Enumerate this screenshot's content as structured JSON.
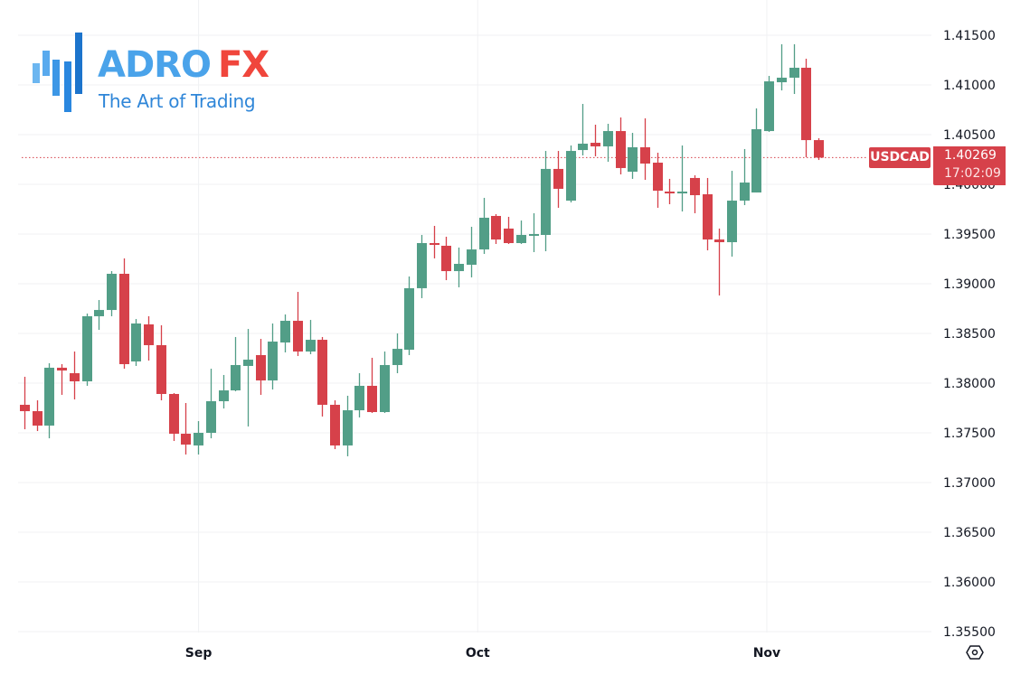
{
  "brand": {
    "name_part1": "ADRO",
    "name_part2": "FX",
    "tagline": "The Art of Trading",
    "colors": {
      "blue": "#4aa3ea",
      "red": "#f0463c",
      "tagline": "#2f86d8"
    }
  },
  "symbol_tag": {
    "symbol": "USDCAD"
  },
  "price_tag": {
    "price": "1.40269",
    "countdown": "17:02:09"
  },
  "settings_button": {
    "icon": "settings-hex-icon"
  },
  "colors": {
    "up": "#529e87",
    "down": "#d6414a",
    "grid": "#f0f1f3",
    "price_line": "#d6414a",
    "text": "#131722"
  },
  "chart_data": {
    "type": "candlestick",
    "title": "USDCAD",
    "xlabel": "",
    "ylabel": "",
    "x_tick_labels": [
      {
        "label": "Sep",
        "candle_index": 14
      },
      {
        "label": "Oct",
        "candle_index": 36.5
      },
      {
        "label": "Nov",
        "candle_index": 59.8
      }
    ],
    "y_ticks": [
      1.415,
      1.41,
      1.405,
      1.4,
      1.395,
      1.39,
      1.385,
      1.38,
      1.375,
      1.37,
      1.365,
      1.36,
      1.355
    ],
    "y_tick_labels": [
      "1.41500",
      "1.41000",
      "1.40500",
      "1.40000",
      "1.39500",
      "1.39000",
      "1.38500",
      "1.38000",
      "1.37500",
      "1.37000",
      "1.36500",
      "1.36000",
      "1.35500"
    ],
    "ylim": [
      1.355,
      1.415
    ],
    "grid": true,
    "last_price": 1.40269,
    "candles": [
      {
        "o": 1.37782,
        "h": 1.38064,
        "l": 1.37536,
        "c": 1.37718
      },
      {
        "o": 1.37718,
        "h": 1.37827,
        "l": 1.37518,
        "c": 1.37573
      },
      {
        "o": 1.37573,
        "h": 1.382,
        "l": 1.37445,
        "c": 1.38155
      },
      {
        "o": 1.38155,
        "h": 1.38191,
        "l": 1.37882,
        "c": 1.38127
      },
      {
        "o": 1.381,
        "h": 1.38318,
        "l": 1.37836,
        "c": 1.38018
      },
      {
        "o": 1.38018,
        "h": 1.387,
        "l": 1.37973,
        "c": 1.38673
      },
      {
        "o": 1.38673,
        "h": 1.38836,
        "l": 1.38536,
        "c": 1.38736
      },
      {
        "o": 1.38736,
        "h": 1.39127,
        "l": 1.38673,
        "c": 1.391
      },
      {
        "o": 1.391,
        "h": 1.39255,
        "l": 1.38145,
        "c": 1.38191
      },
      {
        "o": 1.38218,
        "h": 1.38645,
        "l": 1.38173,
        "c": 1.386
      },
      {
        "o": 1.38591,
        "h": 1.38673,
        "l": 1.38227,
        "c": 1.38382
      },
      {
        "o": 1.38382,
        "h": 1.38582,
        "l": 1.37827,
        "c": 1.37891
      },
      {
        "o": 1.37891,
        "h": 1.379,
        "l": 1.37418,
        "c": 1.37491
      },
      {
        "o": 1.37491,
        "h": 1.378,
        "l": 1.37282,
        "c": 1.37382
      },
      {
        "o": 1.37373,
        "h": 1.37618,
        "l": 1.37282,
        "c": 1.375
      },
      {
        "o": 1.375,
        "h": 1.38145,
        "l": 1.37445,
        "c": 1.37818
      },
      {
        "o": 1.37818,
        "h": 1.38082,
        "l": 1.37745,
        "c": 1.37927
      },
      {
        "o": 1.37927,
        "h": 1.38464,
        "l": 1.37918,
        "c": 1.38182
      },
      {
        "o": 1.38173,
        "h": 1.38545,
        "l": 1.37564,
        "c": 1.38236
      },
      {
        "o": 1.38282,
        "h": 1.38445,
        "l": 1.37882,
        "c": 1.38027
      },
      {
        "o": 1.38027,
        "h": 1.386,
        "l": 1.37936,
        "c": 1.38418
      },
      {
        "o": 1.38409,
        "h": 1.38691,
        "l": 1.38309,
        "c": 1.38627
      },
      {
        "o": 1.38627,
        "h": 1.38918,
        "l": 1.38273,
        "c": 1.38318
      },
      {
        "o": 1.38318,
        "h": 1.38636,
        "l": 1.38291,
        "c": 1.38436
      },
      {
        "o": 1.38436,
        "h": 1.38464,
        "l": 1.37664,
        "c": 1.37782
      },
      {
        "o": 1.37782,
        "h": 1.37827,
        "l": 1.37336,
        "c": 1.37373
      },
      {
        "o": 1.37373,
        "h": 1.37873,
        "l": 1.37264,
        "c": 1.37727
      },
      {
        "o": 1.37727,
        "h": 1.381,
        "l": 1.37655,
        "c": 1.37973
      },
      {
        "o": 1.37973,
        "h": 1.38255,
        "l": 1.377,
        "c": 1.37709
      },
      {
        "o": 1.37709,
        "h": 1.38318,
        "l": 1.377,
        "c": 1.38182
      },
      {
        "o": 1.38182,
        "h": 1.385,
        "l": 1.381,
        "c": 1.38345
      },
      {
        "o": 1.38336,
        "h": 1.39073,
        "l": 1.38282,
        "c": 1.38955
      },
      {
        "o": 1.38955,
        "h": 1.39491,
        "l": 1.38855,
        "c": 1.39409
      },
      {
        "o": 1.39409,
        "h": 1.39582,
        "l": 1.39255,
        "c": 1.39391
      },
      {
        "o": 1.39382,
        "h": 1.39473,
        "l": 1.39036,
        "c": 1.39127
      },
      {
        "o": 1.39127,
        "h": 1.39364,
        "l": 1.38964,
        "c": 1.392
      },
      {
        "o": 1.39191,
        "h": 1.39573,
        "l": 1.39064,
        "c": 1.39345
      },
      {
        "o": 1.39345,
        "h": 1.39864,
        "l": 1.393,
        "c": 1.39664
      },
      {
        "o": 1.39682,
        "h": 1.397,
        "l": 1.394,
        "c": 1.39445
      },
      {
        "o": 1.39555,
        "h": 1.39673,
        "l": 1.394,
        "c": 1.39409
      },
      {
        "o": 1.39409,
        "h": 1.39636,
        "l": 1.394,
        "c": 1.39491
      },
      {
        "o": 1.39491,
        "h": 1.39709,
        "l": 1.39318,
        "c": 1.395
      },
      {
        "o": 1.39491,
        "h": 1.40336,
        "l": 1.39327,
        "c": 1.40155
      },
      {
        "o": 1.40155,
        "h": 1.40336,
        "l": 1.39764,
        "c": 1.39955
      },
      {
        "o": 1.39836,
        "h": 1.40391,
        "l": 1.39818,
        "c": 1.40336
      },
      {
        "o": 1.40345,
        "h": 1.40809,
        "l": 1.40291,
        "c": 1.40409
      },
      {
        "o": 1.40418,
        "h": 1.406,
        "l": 1.40282,
        "c": 1.40382
      },
      {
        "o": 1.40382,
        "h": 1.40609,
        "l": 1.40227,
        "c": 1.40536
      },
      {
        "o": 1.40536,
        "h": 1.40673,
        "l": 1.401,
        "c": 1.40164
      },
      {
        "o": 1.40127,
        "h": 1.40518,
        "l": 1.40055,
        "c": 1.40373
      },
      {
        "o": 1.40373,
        "h": 1.40664,
        "l": 1.40045,
        "c": 1.40209
      },
      {
        "o": 1.40218,
        "h": 1.40318,
        "l": 1.39764,
        "c": 1.39936
      },
      {
        "o": 1.39927,
        "h": 1.40055,
        "l": 1.398,
        "c": 1.39909
      },
      {
        "o": 1.39909,
        "h": 1.40391,
        "l": 1.39727,
        "c": 1.39927
      },
      {
        "o": 1.40064,
        "h": 1.40091,
        "l": 1.39709,
        "c": 1.39891
      },
      {
        "o": 1.399,
        "h": 1.40064,
        "l": 1.39336,
        "c": 1.39445
      },
      {
        "o": 1.39445,
        "h": 1.39555,
        "l": 1.38882,
        "c": 1.39418
      },
      {
        "o": 1.39418,
        "h": 1.40136,
        "l": 1.39273,
        "c": 1.39836
      },
      {
        "o": 1.39836,
        "h": 1.40355,
        "l": 1.39791,
        "c": 1.40018
      },
      {
        "o": 1.39918,
        "h": 1.40764,
        "l": 1.39918,
        "c": 1.40555
      },
      {
        "o": 1.40536,
        "h": 1.41091,
        "l": 1.40527,
        "c": 1.41036
      },
      {
        "o": 1.41027,
        "h": 1.41409,
        "l": 1.40945,
        "c": 1.41073
      },
      {
        "o": 1.41073,
        "h": 1.41409,
        "l": 1.40909,
        "c": 1.41173
      },
      {
        "o": 1.41173,
        "h": 1.41264,
        "l": 1.40273,
        "c": 1.40445
      },
      {
        "o": 1.40445,
        "h": 1.40464,
        "l": 1.40245,
        "c": 1.40269
      }
    ]
  }
}
